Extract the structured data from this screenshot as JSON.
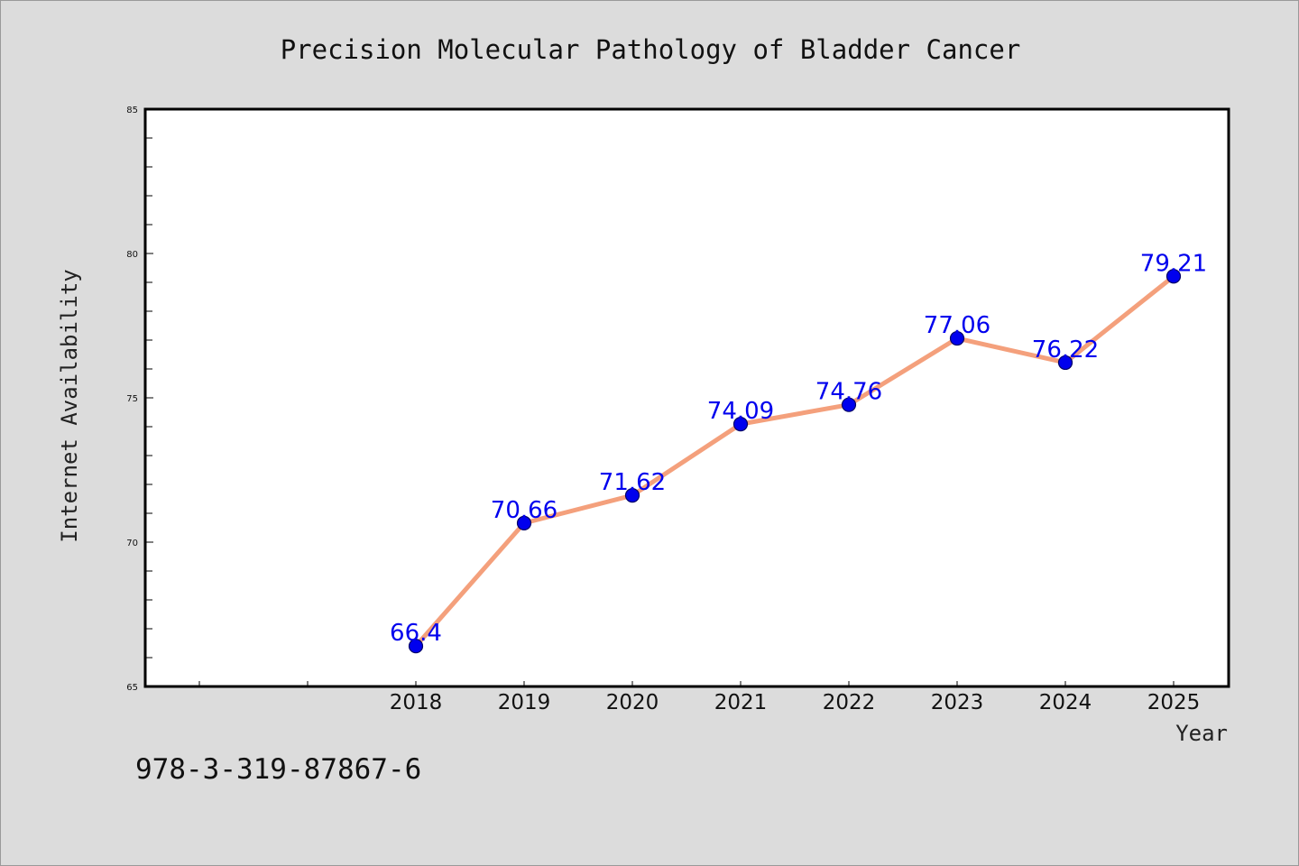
{
  "chart_data": {
    "type": "line",
    "title": "Precision Molecular Pathology of Bladder Cancer",
    "xlabel": "Year",
    "ylabel": "Internet Availability",
    "categories": [
      "2018",
      "2019",
      "2020",
      "2021",
      "2022",
      "2023",
      "2024",
      "2025"
    ],
    "series": [
      {
        "values": [
          66.4,
          70.66,
          71.62,
          74.09,
          74.76,
          77.06,
          76.22,
          79.21
        ],
        "labels": [
          "66.4",
          "70.66",
          "71.62",
          "74.09",
          "74.76",
          "77.06",
          "76.22",
          "79.21"
        ]
      }
    ],
    "ylim": [
      65,
      85
    ],
    "yticks": [
      "65",
      "70",
      "75",
      "80",
      "85"
    ],
    "grid": false,
    "legend": "none",
    "colors": {
      "line": "#f4a07c",
      "marker": "#0000ee",
      "marker_edge": "#000066",
      "data_label": "#0000ee",
      "plot_background": "#ffffff",
      "page_background": "#dcdcdc"
    }
  },
  "footer": {
    "isbn": "978-3-319-87867-6"
  }
}
